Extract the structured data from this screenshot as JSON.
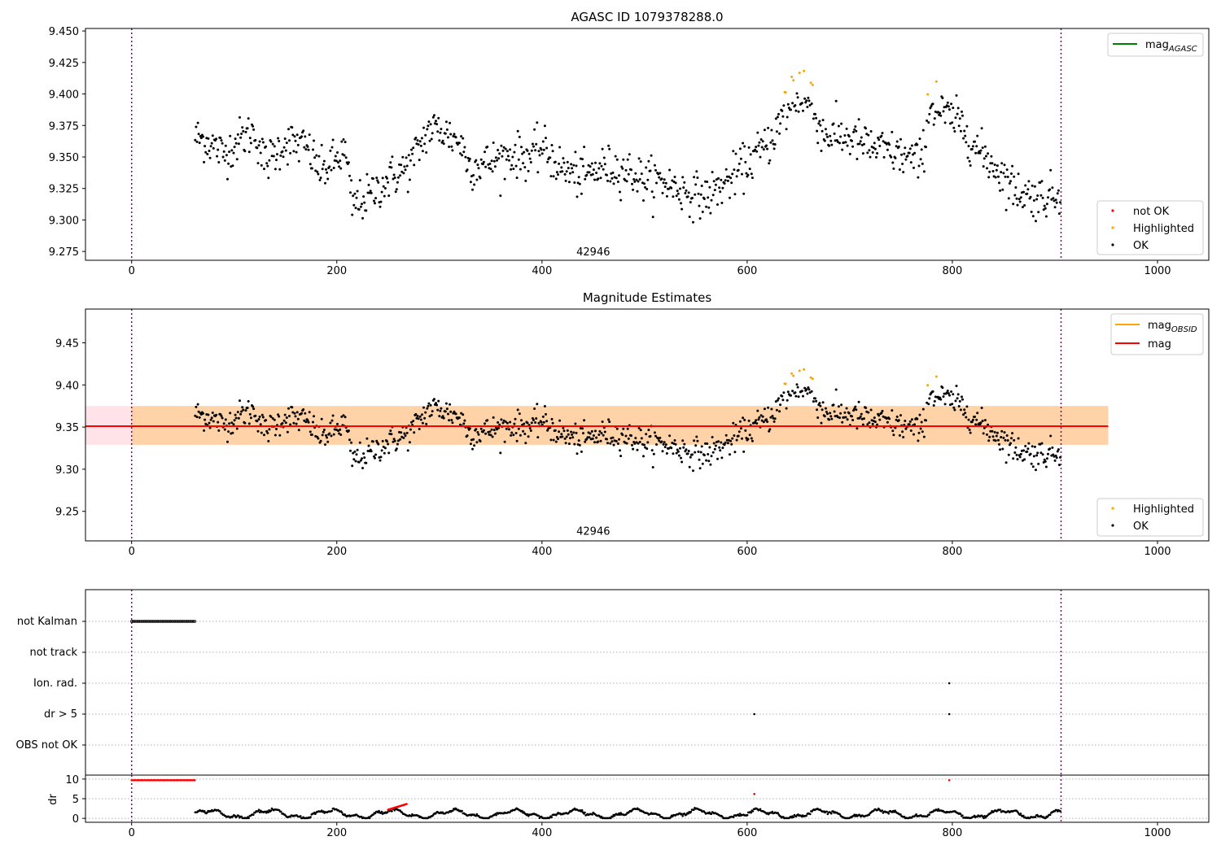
{
  "chart_data": [
    {
      "type": "scatter",
      "title": "AGASC ID 1079378288.0",
      "xlim": [
        -45,
        1050
      ],
      "ylim": [
        9.268,
        9.452
      ],
      "xticks": [
        0,
        200,
        400,
        600,
        800,
        1000
      ],
      "yticks": [
        9.275,
        9.3,
        9.325,
        9.35,
        9.375,
        9.4,
        9.425,
        9.45
      ],
      "ytick_labels": [
        "9.275",
        "9.300",
        "9.325",
        "9.350",
        "9.375",
        "9.400",
        "9.425",
        "9.450"
      ],
      "obs_boundaries": [
        0,
        906
      ],
      "annotation": {
        "text": "42946",
        "x": 450,
        "y": 9.272
      },
      "lines": [
        {
          "name": "mag_AGASC",
          "label_main": "mag",
          "label_sub": "AGASC",
          "color": "#008000"
        }
      ],
      "legend_lines_position": "upper-right",
      "legend_points": [
        {
          "name": "not OK",
          "color": "#ff0000"
        },
        {
          "name": "Highlighted",
          "color": "#ffa500"
        },
        {
          "name": "OK",
          "color": "#000000"
        }
      ],
      "legend_points_position": "lower-right"
    },
    {
      "type": "scatter",
      "title": "Magnitude Estimates",
      "xlim": [
        -45,
        1050
      ],
      "ylim": [
        9.215,
        9.49
      ],
      "xticks": [
        0,
        200,
        400,
        600,
        800,
        1000
      ],
      "yticks": [
        9.25,
        9.3,
        9.35,
        9.4,
        9.45
      ],
      "ytick_labels": [
        "9.25",
        "9.30",
        "9.35",
        "9.40",
        "9.45"
      ],
      "obs_boundaries": [
        0,
        906
      ],
      "annotation": {
        "text": "42946",
        "x": 450,
        "y": 9.222
      },
      "mag_line": 9.351,
      "mag_band": [
        9.329,
        9.375
      ],
      "band_xrange": [
        -45,
        952
      ],
      "band_obs_xrange": [
        0,
        952
      ],
      "lines": [
        {
          "name": "mag_OBSID",
          "label_main": "mag",
          "label_sub": "OBSID",
          "color": "#ffa500"
        },
        {
          "name": "mag",
          "label_main": "mag",
          "label_sub": "",
          "color": "#ff0000"
        }
      ],
      "legend_lines_position": "upper-right",
      "legend_points": [
        {
          "name": "Highlighted",
          "color": "#ffa500"
        },
        {
          "name": "OK",
          "color": "#000000"
        }
      ],
      "legend_points_position": "lower-right"
    },
    {
      "type": "scatter",
      "title": "",
      "xlim": [
        -45,
        1050
      ],
      "xticks": [
        0,
        200,
        400,
        600,
        800,
        1000
      ],
      "obs_boundaries": [
        0,
        906
      ],
      "flag_rows": [
        "not Kalman",
        "not track",
        "Ion. rad.",
        "dr > 5",
        "OBS not OK"
      ],
      "flag_events": {
        "not Kalman": [
          0,
          62
        ],
        "Ion. rad.": [
          797
        ],
        "dr > 5": [
          607,
          797
        ]
      },
      "dr": {
        "ylabel": "dr",
        "ylim": [
          -1,
          11
        ],
        "yticks": [
          0,
          5,
          10
        ],
        "ytick_labels": [
          "0",
          "5",
          "10"
        ],
        "high_value": 9.7,
        "red_points": [
          {
            "x": 607,
            "y": 6.2
          },
          {
            "x": 797,
            "y": 9.7
          }
        ]
      }
    }
  ]
}
